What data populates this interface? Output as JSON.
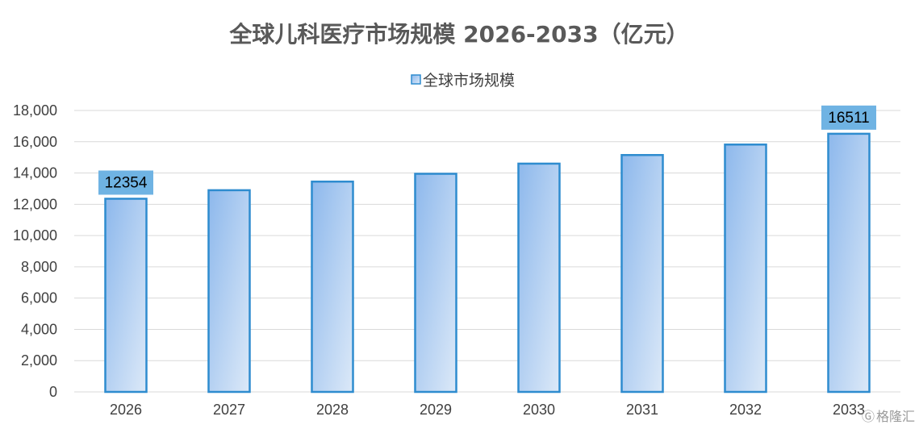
{
  "chart_data": {
    "type": "bar",
    "title": "全球儿科医疗市场规模 2026-2033（亿元）",
    "categories": [
      "2026",
      "2027",
      "2028",
      "2029",
      "2030",
      "2031",
      "2032",
      "2033"
    ],
    "series": [
      {
        "name": "全球市场规模",
        "values": [
          12354,
          12900,
          13450,
          13950,
          14600,
          15150,
          15820,
          16511
        ]
      }
    ],
    "data_labels": [
      {
        "category": "2026",
        "text": "12354"
      },
      {
        "category": "2033",
        "text": "16511"
      }
    ],
    "ylim": [
      0,
      18000
    ],
    "y_ticks": [
      "0",
      "2,000",
      "4,000",
      "6,000",
      "8,000",
      "10,000",
      "12,000",
      "14,000",
      "16,000",
      "18,000"
    ],
    "grid": true,
    "legend_position": "top",
    "colors": {
      "bar_top": "#8db8ec",
      "bar_bottom": "#dce9f8",
      "bar_border": "#2e8ccf",
      "label_bg": "#6fb3e3",
      "grid": "#d9d9d9"
    }
  },
  "watermark": {
    "text": "格隆汇"
  }
}
